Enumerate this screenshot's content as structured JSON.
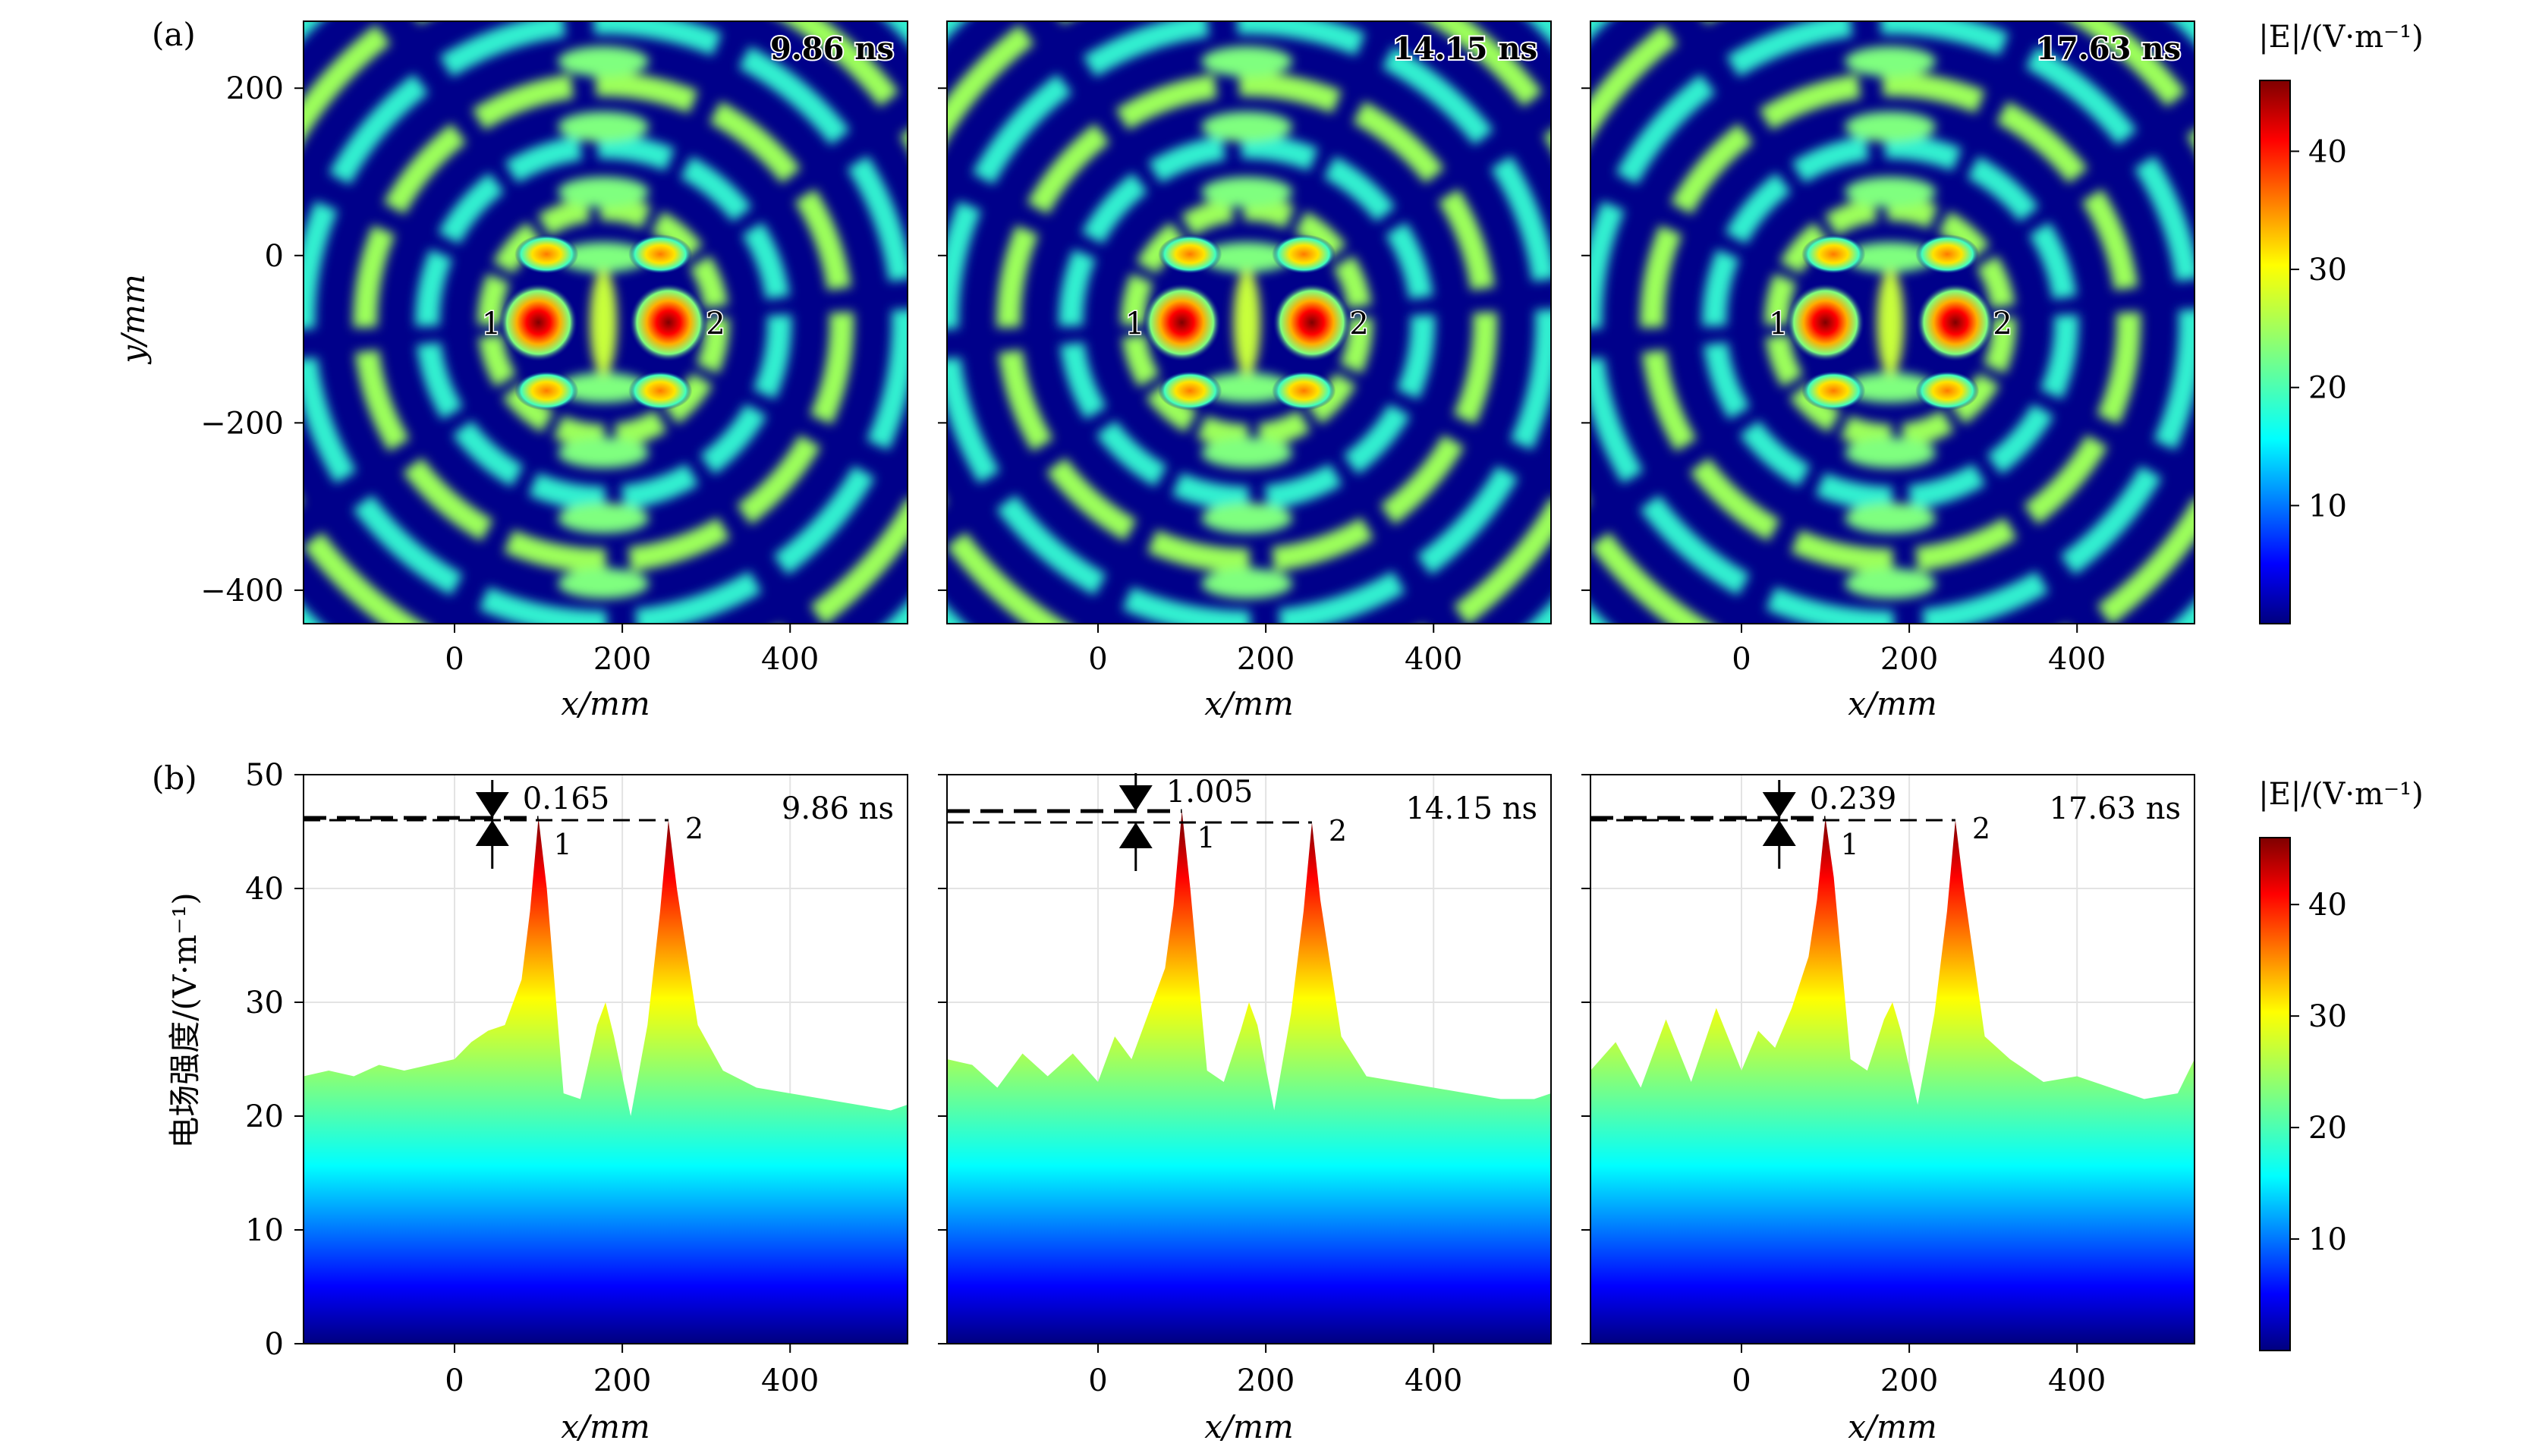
{
  "figure": {
    "label_a": "(a)",
    "label_b": "(b)"
  },
  "colorbar": {
    "label": "|E|/(V·m⁻¹)",
    "ticks": [
      "10",
      "20",
      "30",
      "40"
    ],
    "range": [
      0,
      46
    ],
    "colormap": "jet"
  },
  "axes": {
    "x_label": "x/mm",
    "y_label_a": "y/mm",
    "y_label_b": "电场强度/(V·m⁻¹)",
    "x_ticks": [
      "0",
      "200",
      "400"
    ],
    "y_ticks_a": [
      "200",
      "0",
      "−200",
      "−400"
    ],
    "y_ticks_b": [
      "50",
      "40",
      "30",
      "20",
      "10",
      "0"
    ]
  },
  "panels": [
    {
      "time": "9.86 ns",
      "difference": "0.165",
      "marker1": "1",
      "marker2": "2"
    },
    {
      "time": "14.15 ns",
      "difference": "1.005",
      "marker1": "1",
      "marker2": "2"
    },
    {
      "time": "17.63 ns",
      "difference": "0.239",
      "marker1": "1",
      "marker2": "2"
    }
  ],
  "chart_data": [
    {
      "type": "heatmap",
      "title": "(a)",
      "xlabel": "x/mm",
      "ylabel": "y/mm",
      "xlim": [
        -180,
        540
      ],
      "ylim": [
        -440,
        280
      ],
      "x_ticks": [
        0,
        200,
        400
      ],
      "y_ticks": [
        200,
        0,
        -200,
        -400
      ],
      "color_range": [
        0,
        46
      ],
      "colorbar_label": "|E|/(V·m⁻¹)",
      "frames": [
        "9.86 ns",
        "14.15 ns",
        "17.63 ns"
      ],
      "focal_points": [
        {
          "label": "1",
          "x": 100,
          "y": -80
        },
        {
          "label": "2",
          "x": 255,
          "y": -80
        }
      ]
    },
    {
      "type": "area",
      "title": "(b)",
      "xlabel": "x/mm",
      "ylabel": "电场强度/(V·m⁻¹)",
      "xlim": [
        -180,
        540
      ],
      "ylim": [
        0,
        50
      ],
      "x_ticks": [
        0,
        200,
        400
      ],
      "y_ticks": [
        0,
        10,
        20,
        30,
        40,
        50
      ],
      "grid": true,
      "series": [
        {
          "name": "9.86 ns",
          "peak1": 46.2,
          "peak2": 46.0,
          "difference": 0.165,
          "x": [
            -180,
            -150,
            -120,
            -90,
            -60,
            -30,
            0,
            20,
            40,
            60,
            80,
            90,
            100,
            110,
            130,
            150,
            170,
            180,
            190,
            210,
            230,
            245,
            255,
            265,
            290,
            320,
            360,
            400,
            440,
            480,
            520,
            540
          ],
          "y": [
            23.5,
            24.0,
            23.5,
            24.5,
            24.0,
            24.5,
            25.0,
            26.5,
            27.5,
            28.0,
            32.0,
            38.0,
            46.2,
            40.0,
            22.0,
            21.5,
            28.0,
            30.0,
            27.0,
            20.0,
            28.0,
            38.0,
            46.0,
            40.0,
            28.0,
            24.0,
            22.5,
            22.0,
            21.5,
            21.0,
            20.5,
            21.0
          ]
        },
        {
          "name": "14.15 ns",
          "peak1": 46.8,
          "peak2": 45.8,
          "difference": 1.005,
          "x": [
            -180,
            -150,
            -120,
            -90,
            -60,
            -30,
            0,
            20,
            40,
            60,
            80,
            90,
            100,
            110,
            130,
            150,
            170,
            180,
            190,
            210,
            230,
            245,
            255,
            265,
            290,
            320,
            360,
            400,
            440,
            480,
            520,
            540
          ],
          "y": [
            25.0,
            24.5,
            22.5,
            25.5,
            23.5,
            25.5,
            23.0,
            27.0,
            25.0,
            29.0,
            33.0,
            38.5,
            46.8,
            40.0,
            24.0,
            23.0,
            27.5,
            30.0,
            28.0,
            20.5,
            29.0,
            38.0,
            45.8,
            39.0,
            27.0,
            23.5,
            23.0,
            22.5,
            22.0,
            21.5,
            21.5,
            22.0
          ]
        },
        {
          "name": "17.63 ns",
          "peak1": 46.2,
          "peak2": 46.0,
          "difference": 0.239,
          "x": [
            -180,
            -150,
            -120,
            -90,
            -60,
            -30,
            0,
            20,
            40,
            60,
            80,
            90,
            100,
            110,
            130,
            150,
            170,
            180,
            190,
            210,
            230,
            245,
            255,
            265,
            290,
            320,
            360,
            400,
            440,
            480,
            520,
            540
          ],
          "y": [
            24.0,
            26.5,
            22.5,
            28.5,
            23.0,
            29.5,
            24.0,
            27.5,
            26.0,
            29.5,
            34.0,
            39.0,
            46.2,
            41.0,
            25.0,
            24.0,
            28.5,
            30.0,
            27.5,
            21.0,
            29.0,
            38.0,
            46.0,
            40.0,
            27.0,
            25.0,
            23.0,
            23.5,
            22.5,
            21.5,
            22.0,
            25.0
          ]
        }
      ]
    }
  ]
}
